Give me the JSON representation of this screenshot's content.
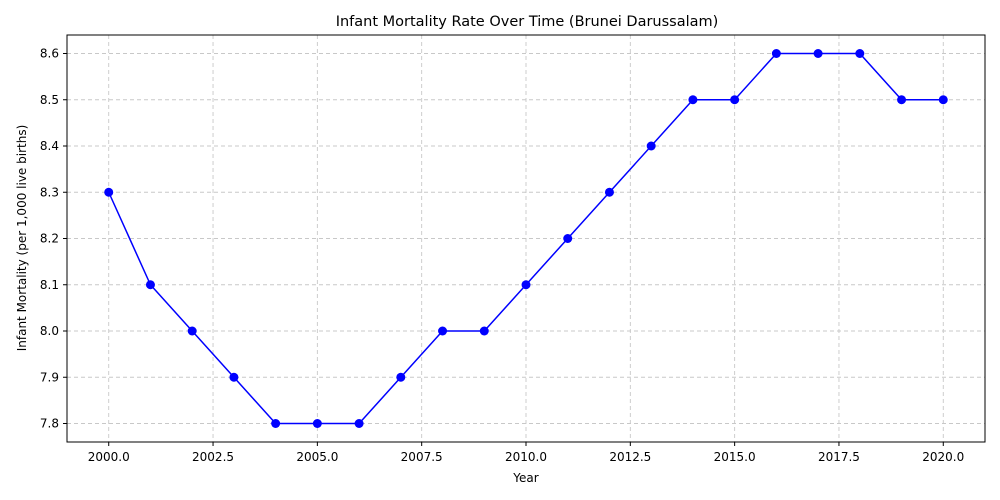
{
  "chart_data": {
    "type": "line",
    "title": "Infant Mortality Rate Over Time (Brunei Darussalam)",
    "xlabel": "Year",
    "ylabel": "Infant Mortality (per 1,000 live births)",
    "x": [
      2000,
      2001,
      2002,
      2003,
      2004,
      2005,
      2006,
      2007,
      2008,
      2009,
      2010,
      2011,
      2012,
      2013,
      2014,
      2015,
      2016,
      2017,
      2018,
      2019,
      2020
    ],
    "series": [
      {
        "values": [
          8.3,
          8.1,
          8.0,
          7.9,
          7.8,
          7.8,
          7.8,
          7.9,
          8.0,
          8.0,
          8.1,
          8.2,
          8.3,
          8.4,
          8.5,
          8.5,
          8.6,
          8.6,
          8.6,
          8.5,
          8.5
        ],
        "color": "#0000ff"
      }
    ],
    "xlim": [
      1999,
      2021
    ],
    "ylim": [
      7.76,
      8.64
    ],
    "xticks": [
      2000.0,
      2002.5,
      2005.0,
      2007.5,
      2010.0,
      2012.5,
      2015.0,
      2017.5,
      2020.0
    ],
    "xtick_labels": [
      "2000.0",
      "2002.5",
      "2005.0",
      "2007.5",
      "2010.0",
      "2012.5",
      "2015.0",
      "2017.5",
      "2020.0"
    ],
    "yticks": [
      7.8,
      7.9,
      8.0,
      8.1,
      8.2,
      8.3,
      8.4,
      8.5,
      8.6
    ],
    "ytick_labels": [
      "7.8",
      "7.9",
      "8.0",
      "8.1",
      "8.2",
      "8.3",
      "8.4",
      "8.5",
      "8.6"
    ],
    "grid": true,
    "marker": "circle"
  }
}
